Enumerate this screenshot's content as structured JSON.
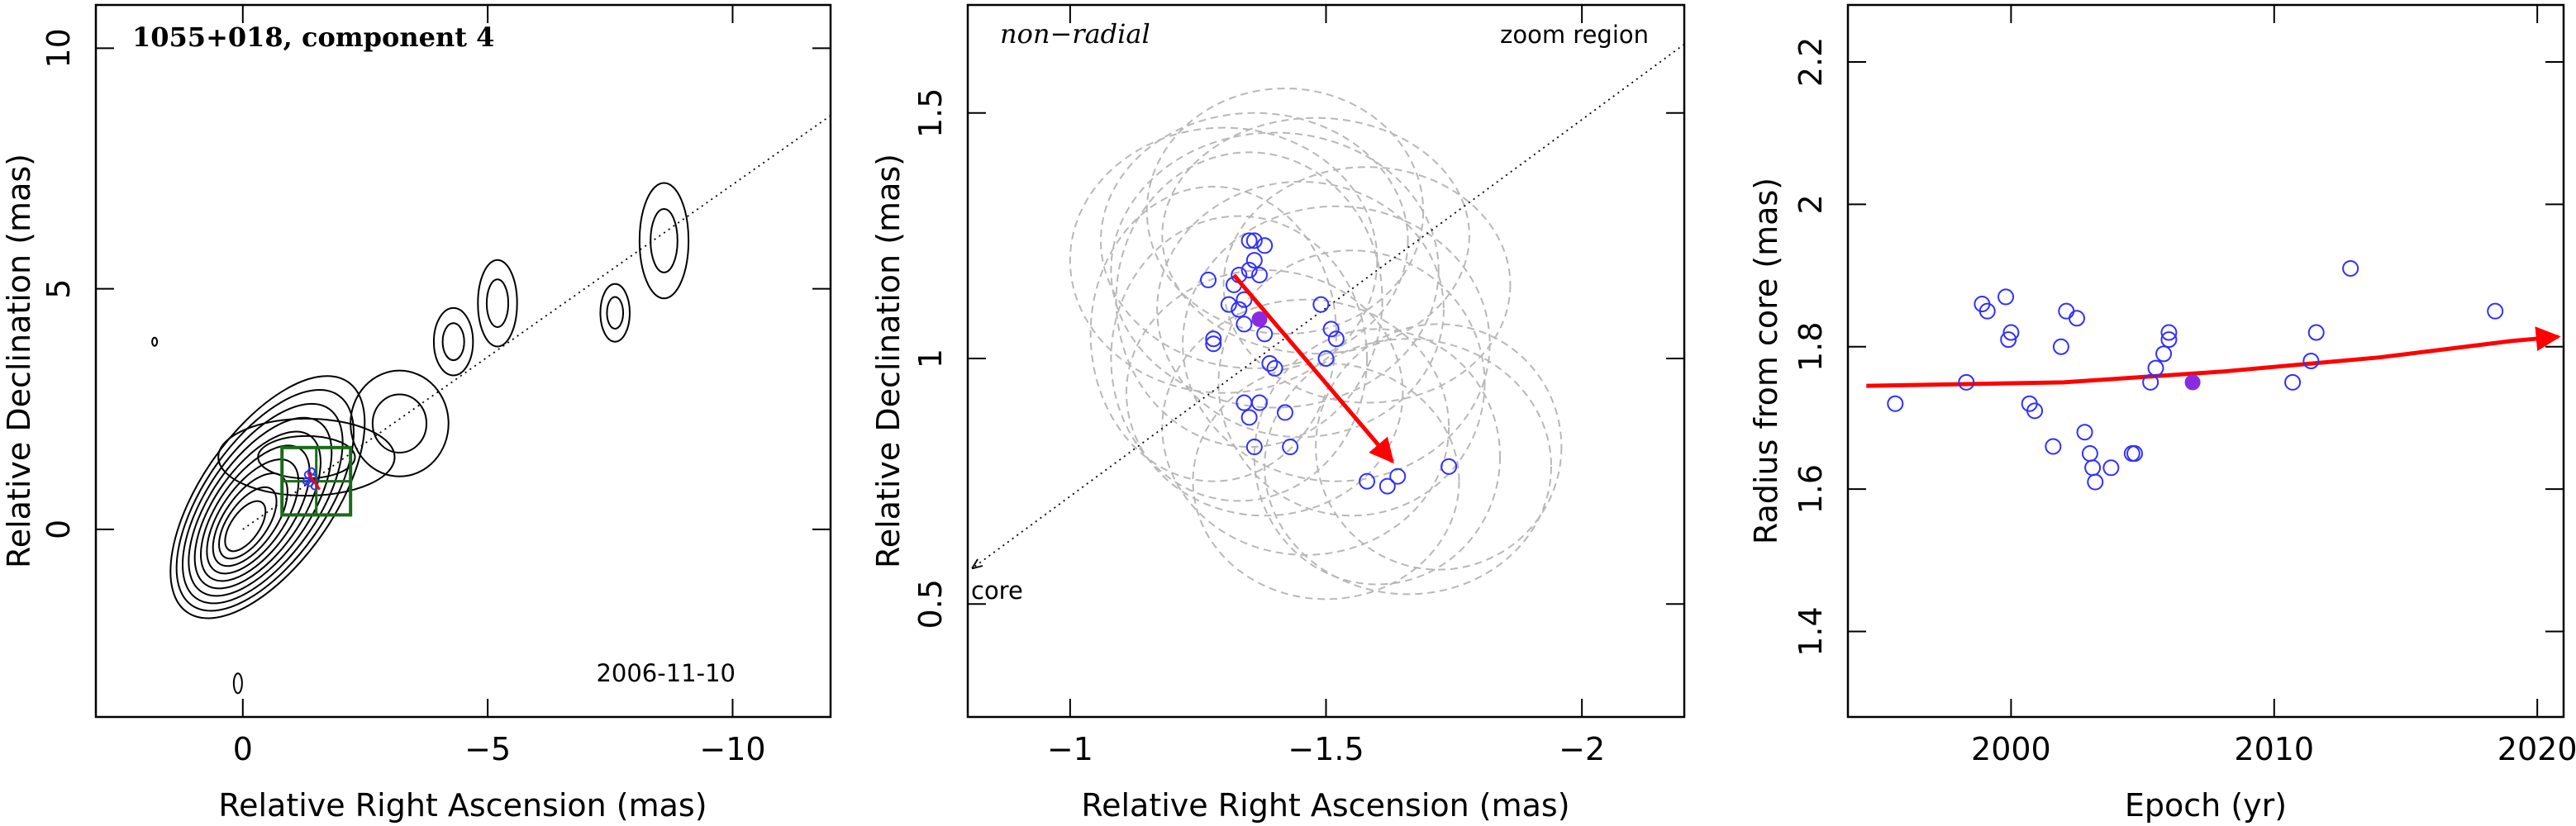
{
  "chart_data": [
    {
      "type": "contour_map",
      "title": "1055+018, component 4",
      "epoch_label": "2006-11-10",
      "xlabel": "Relative Right Ascension (mas)",
      "ylabel": "Relative Declination (mas)",
      "xlim": [
        3.0,
        -12.0
      ],
      "ylim": [
        -3.9,
        10.9
      ],
      "xticks": [
        0,
        -5,
        -10
      ],
      "xtick_labels": [
        "0",
        "−5",
        "−10"
      ],
      "yticks": [
        0,
        5,
        10
      ],
      "ytick_labels": [
        "0",
        "5",
        "10"
      ],
      "jet_line": {
        "from": [
          0,
          0
        ],
        "to": [
          -12,
          8.6
        ]
      },
      "core_contours": {
        "center": [
          0,
          0
        ],
        "count": 10
      },
      "contour_blobs": [
        {
          "x": -1.3,
          "y": 1.5,
          "rx": 1.8,
          "ry": 0.8
        },
        {
          "x": -3.2,
          "y": 2.2,
          "rx": 1.0,
          "ry": 1.1
        },
        {
          "x": -4.3,
          "y": 3.9,
          "rx": 0.4,
          "ry": 0.7
        },
        {
          "x": -5.2,
          "y": 4.7,
          "rx": 0.4,
          "ry": 0.9
        },
        {
          "x": -7.6,
          "y": 4.5,
          "rx": 0.3,
          "ry": 0.6
        },
        {
          "x": -8.6,
          "y": 6.0,
          "rx": 0.5,
          "ry": 1.2
        }
      ],
      "zoom_box": {
        "x": [
          -0.8,
          -2.2
        ],
        "y": [
          0.3,
          1.7
        ]
      },
      "component_point": {
        "x": -1.4,
        "y": 1.0
      }
    },
    {
      "type": "scatter",
      "title": "",
      "label_top_left": "non−radial",
      "label_top_right": "zoom region",
      "core_label": "core",
      "xlabel": "Relative Right Ascension (mas)",
      "ylabel": "Relative Declination (mas)",
      "xlim": [
        -0.8,
        -2.2
      ],
      "ylim": [
        0.27,
        1.72
      ],
      "xticks": [
        -1,
        -1.5,
        -2
      ],
      "xtick_labels": [
        "−1",
        "−1.5",
        "−2"
      ],
      "yticks": [
        0.5,
        1,
        1.5
      ],
      "ytick_labels": [
        "0.5",
        "1",
        "1.5"
      ],
      "points": [
        [
          -1.27,
          1.16
        ],
        [
          -1.28,
          1.03
        ],
        [
          -1.28,
          1.04
        ],
        [
          -1.31,
          1.11
        ],
        [
          -1.32,
          1.15
        ],
        [
          -1.33,
          1.17
        ],
        [
          -1.34,
          1.12
        ],
        [
          -1.35,
          1.18
        ],
        [
          -1.35,
          1.24
        ],
        [
          -1.36,
          1.2
        ],
        [
          -1.37,
          1.17
        ],
        [
          -1.38,
          1.23
        ],
        [
          -1.36,
          1.24
        ],
        [
          -1.33,
          1.1
        ],
        [
          -1.34,
          1.07
        ],
        [
          -1.38,
          1.05
        ],
        [
          -1.39,
          0.99
        ],
        [
          -1.4,
          0.98
        ],
        [
          -1.34,
          0.91
        ],
        [
          -1.35,
          0.88
        ],
        [
          -1.37,
          0.91
        ],
        [
          -1.42,
          0.89
        ],
        [
          -1.43,
          0.82
        ],
        [
          -1.36,
          0.82
        ],
        [
          -1.49,
          1.11
        ],
        [
          -1.5,
          1.0
        ],
        [
          -1.51,
          1.06
        ],
        [
          -1.52,
          1.04
        ],
        [
          -1.58,
          0.75
        ],
        [
          -1.62,
          0.74
        ],
        [
          -1.64,
          0.76
        ],
        [
          -1.74,
          0.78
        ]
      ],
      "epoch_point": {
        "x": -1.37,
        "y": 1.08
      },
      "motion_vector": {
        "from": [
          -1.32,
          1.17
        ],
        "to": [
          -1.63,
          0.79
        ]
      },
      "error_ellipses": [
        [
          -1.3,
          1.2,
          0.3,
          0.27
        ],
        [
          -1.35,
          1.12,
          0.26,
          0.3
        ],
        [
          -1.4,
          1.18,
          0.32,
          0.28
        ],
        [
          -1.45,
          1.1,
          0.28,
          0.26
        ],
        [
          -1.33,
          1.0,
          0.25,
          0.29
        ],
        [
          -1.48,
          1.25,
          0.3,
          0.24
        ],
        [
          -1.42,
          1.3,
          0.27,
          0.25
        ],
        [
          -1.28,
          1.05,
          0.24,
          0.3
        ],
        [
          -1.52,
          1.03,
          0.3,
          0.28
        ],
        [
          -1.38,
          0.93,
          0.27,
          0.25
        ],
        [
          -1.55,
          0.95,
          0.26,
          0.27
        ],
        [
          -1.46,
          0.86,
          0.28,
          0.26
        ],
        [
          -1.6,
          0.8,
          0.24,
          0.26
        ],
        [
          -1.66,
          0.78,
          0.28,
          0.26
        ],
        [
          -1.72,
          0.82,
          0.24,
          0.25
        ],
        [
          -1.58,
          1.15,
          0.28,
          0.24
        ],
        [
          -1.36,
          1.24,
          0.3,
          0.26
        ],
        [
          -1.5,
          0.75,
          0.26,
          0.24
        ]
      ],
      "jet_line": {
        "from": [
          -0.8,
          0.57
        ],
        "to": [
          -2.2,
          1.64
        ]
      }
    },
    {
      "type": "scatter",
      "title": "",
      "xlabel": "Epoch (yr)",
      "ylabel": "Radius from core (mas)",
      "xlim": [
        1993.8,
        2021
      ],
      "ylim": [
        1.28,
        2.28
      ],
      "xticks": [
        2000,
        2010,
        2020
      ],
      "xtick_labels": [
        "2000",
        "2010",
        "2020"
      ],
      "yticks": [
        1.4,
        1.6,
        1.8,
        2.0,
        2.2
      ],
      "ytick_labels": [
        "1.4",
        "1.6",
        "1.8",
        "2",
        "2.2"
      ],
      "points": [
        [
          1995.6,
          1.72
        ],
        [
          1998.3,
          1.75
        ],
        [
          1998.9,
          1.86
        ],
        [
          1999.1,
          1.85
        ],
        [
          1999.8,
          1.87
        ],
        [
          1999.9,
          1.81
        ],
        [
          2000.0,
          1.82
        ],
        [
          2000.7,
          1.72
        ],
        [
          2000.9,
          1.71
        ],
        [
          2001.6,
          1.66
        ],
        [
          2001.9,
          1.8
        ],
        [
          2002.1,
          1.85
        ],
        [
          2002.5,
          1.84
        ],
        [
          2002.8,
          1.68
        ],
        [
          2003.0,
          1.65
        ],
        [
          2003.1,
          1.63
        ],
        [
          2003.2,
          1.61
        ],
        [
          2003.8,
          1.63
        ],
        [
          2004.6,
          1.65
        ],
        [
          2004.7,
          1.65
        ],
        [
          2005.3,
          1.75
        ],
        [
          2005.5,
          1.77
        ],
        [
          2005.8,
          1.79
        ],
        [
          2006.0,
          1.81
        ],
        [
          2006.0,
          1.82
        ],
        [
          2010.7,
          1.75
        ],
        [
          2011.4,
          1.78
        ],
        [
          2011.6,
          1.82
        ],
        [
          2012.9,
          1.91
        ],
        [
          2018.4,
          1.85
        ]
      ],
      "epoch_point": {
        "x": 2006.9,
        "y": 1.75
      },
      "trend_arrow": [
        [
          1994.5,
          1.745
        ],
        [
          2002,
          1.75
        ],
        [
          2008,
          1.765
        ],
        [
          2014,
          1.785
        ],
        [
          2019.0,
          1.808
        ],
        [
          2020.8,
          1.814
        ]
      ]
    }
  ],
  "colors": {
    "contour": "#000000",
    "points": "#3030ff",
    "epoch_point": "#8a2be2",
    "vector": "#ff0000",
    "ellipse": "#b8b8b8",
    "zoom_box": "#1a6b1a"
  }
}
